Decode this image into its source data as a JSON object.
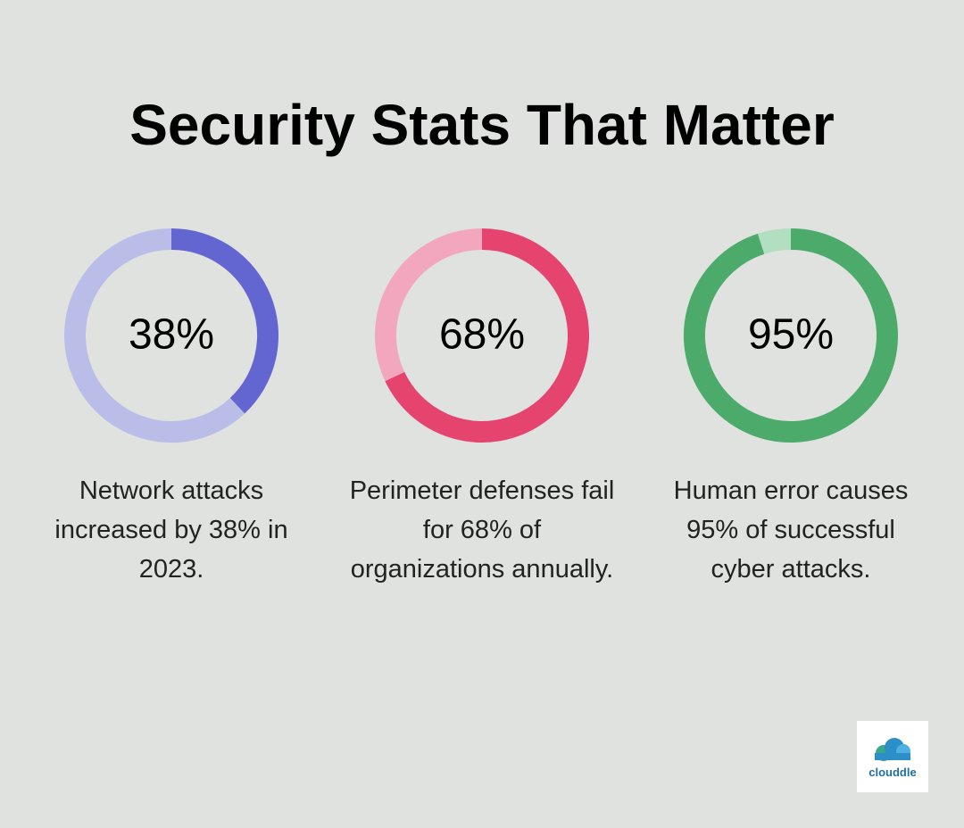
{
  "title": "Security Stats That Matter",
  "chart_data": [
    {
      "type": "donut",
      "values": [
        38,
        62
      ],
      "value_labels": [
        "38%",
        null
      ],
      "colors": [
        "#6366d1",
        "#bbbde9"
      ],
      "caption": "Network attacks increased by 38% in 2023."
    },
    {
      "type": "donut",
      "values": [
        68,
        32
      ],
      "value_labels": [
        "68%",
        null
      ],
      "colors": [
        "#e5446f",
        "#f2a7be"
      ],
      "caption": "Perimeter defenses fail for 68% of organizations annually."
    },
    {
      "type": "donut",
      "values": [
        95,
        5
      ],
      "value_labels": [
        "95%",
        null
      ],
      "colors": [
        "#4caa6a",
        "#b2dfc0"
      ],
      "caption": "Human error causes 95% of successful cyber attacks."
    }
  ],
  "logo": "clouddle"
}
